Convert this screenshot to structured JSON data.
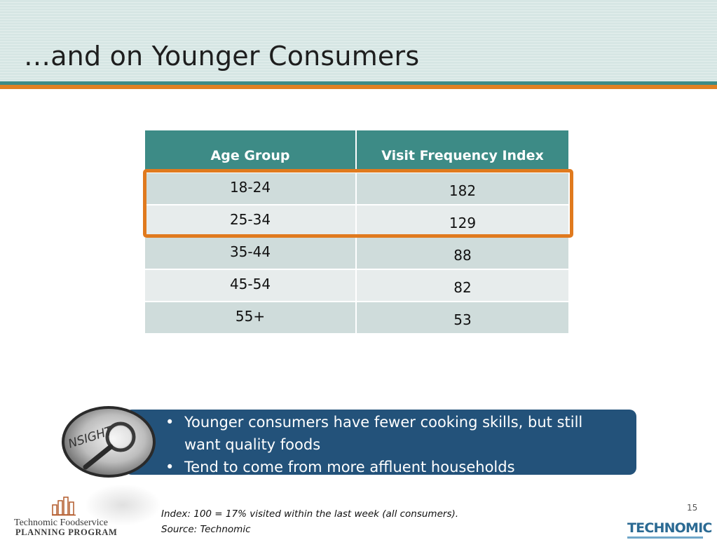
{
  "slide": {
    "title": "…and on Younger Consumers",
    "page_number": "15"
  },
  "table": {
    "headers": [
      "Age Group",
      "Visit Frequency Index"
    ],
    "rows": [
      {
        "age": "18-24",
        "index": "182"
      },
      {
        "age": "25-34",
        "index": "129"
      },
      {
        "age": "35-44",
        "index": "88"
      },
      {
        "age": "45-54",
        "index": "82"
      },
      {
        "age": "55+",
        "index": "53"
      }
    ],
    "highlighted_rows": [
      "18-24",
      "25-34"
    ]
  },
  "insight": {
    "badge_text": "NSIGHT",
    "bullet_symbol": "•",
    "bullets": [
      "Younger consumers have fewer cooking skills, but still want quality foods",
      "Tend to come from more affluent households"
    ]
  },
  "footnotes": [
    "Index: 100 = 17% visited within the last week (all consumers).",
    "Source: Technomic"
  ],
  "logos": {
    "left_line1": "Technomic Foodservice",
    "left_line2": "PLANNING PROGRAM",
    "right": "TECHNOMIC"
  },
  "colors": {
    "teal": "#3d8b86",
    "orange": "#e07a1e",
    "insight_blue": "#23527a",
    "row_light": "#e7ecec",
    "row_dark": "#cfdcdb"
  }
}
